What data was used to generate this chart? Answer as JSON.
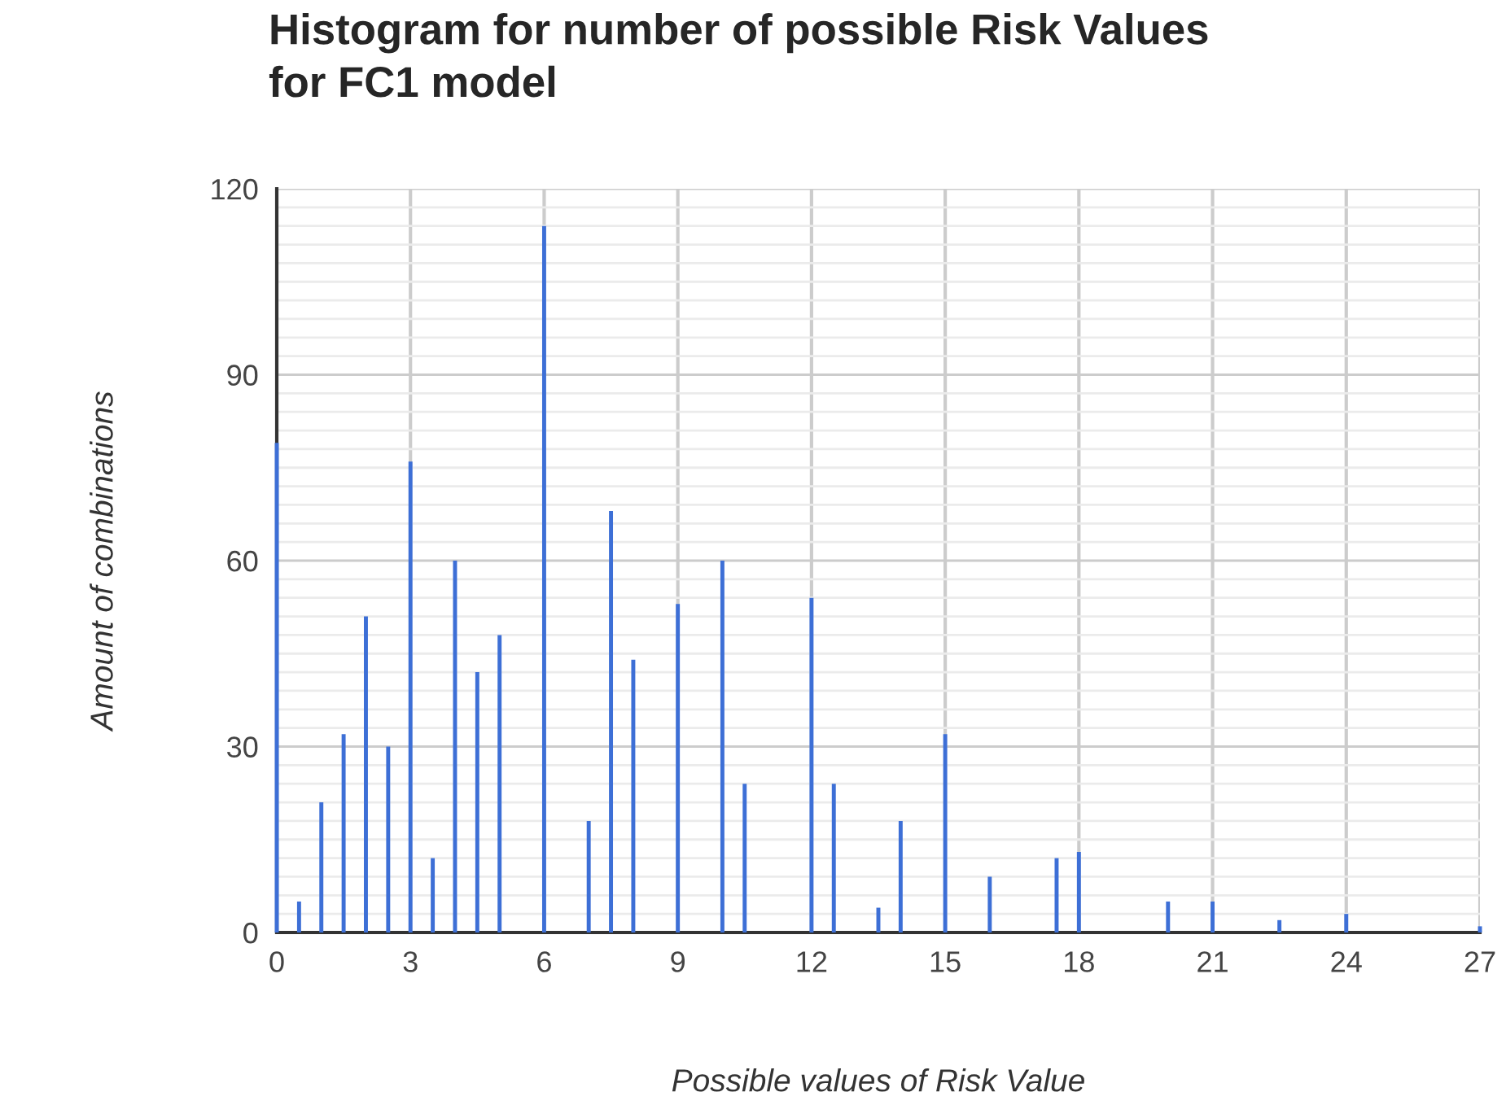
{
  "chart_data": {
    "type": "bar",
    "title": "Histogram for number of possible Risk Values\nfor FC1 model",
    "xlabel": "Possible values of Risk Value",
    "ylabel": "Amount of combinations",
    "x": [
      0,
      0.5,
      1,
      1.5,
      2,
      2.5,
      3,
      3.5,
      4,
      4.5,
      5,
      6,
      7,
      7.5,
      8,
      9,
      10,
      10.5,
      12,
      12.5,
      13.5,
      14,
      15,
      16,
      17.5,
      18,
      20,
      21,
      22.5,
      24,
      27
    ],
    "values": [
      79,
      5,
      21,
      32,
      51,
      30,
      76,
      12,
      60,
      42,
      48,
      114,
      18,
      68,
      44,
      53,
      60,
      24,
      54,
      24,
      4,
      18,
      32,
      9,
      12,
      13,
      5,
      5,
      2,
      3,
      1
    ],
    "color": "#3d6fd6",
    "xlim": [
      0,
      27
    ],
    "xticks": [
      0,
      3,
      6,
      9,
      12,
      15,
      18,
      21,
      24,
      27
    ],
    "ylim": [
      0,
      120
    ],
    "yticks": [
      0,
      {
        "value": 3,
        "label": null
      },
      {
        "value": 6,
        "label": null
      },
      {
        "value": 9,
        "label": null
      },
      {
        "value": 12,
        "label": null
      },
      {
        "value": 15,
        "label": null
      },
      {
        "value": 18,
        "label": null
      },
      {
        "value": 21,
        "label": null
      },
      {
        "value": 24,
        "label": null
      },
      {
        "value": 27,
        "label": null
      },
      30,
      {
        "value": 33,
        "label": null
      },
      {
        "value": 36,
        "label": null
      },
      {
        "value": 39,
        "label": null
      },
      {
        "value": 42,
        "label": null
      },
      {
        "value": 45,
        "label": null
      },
      {
        "value": 48,
        "label": null
      },
      {
        "value": 51,
        "label": null
      },
      {
        "value": 54,
        "label": null
      },
      {
        "value": 57,
        "label": null
      },
      60,
      {
        "value": 63,
        "label": null
      },
      {
        "value": 66,
        "label": null
      },
      {
        "value": 69,
        "label": null
      },
      {
        "value": 72,
        "label": null
      },
      {
        "value": 75,
        "label": null
      },
      {
        "value": 78,
        "label": null
      },
      {
        "value": 81,
        "label": null
      },
      {
        "value": 84,
        "label": null
      },
      {
        "value": 87,
        "label": null
      },
      90,
      {
        "value": 93,
        "label": null
      },
      {
        "value": 96,
        "label": null
      },
      {
        "value": 99,
        "label": null
      },
      {
        "value": 102,
        "label": null
      },
      {
        "value": 105,
        "label": null
      },
      {
        "value": 108,
        "label": null
      },
      {
        "value": 111,
        "label": null
      },
      {
        "value": 114,
        "label": null
      },
      {
        "value": 117,
        "label": null
      },
      120
    ],
    "grid": true
  }
}
